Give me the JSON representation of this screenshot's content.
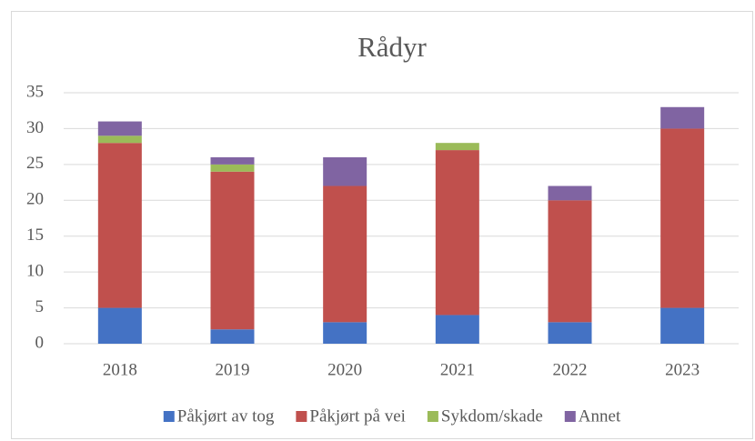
{
  "chart_data": {
    "type": "stacked_bar",
    "title": "Rådyr",
    "categories": [
      "2018",
      "2019",
      "2020",
      "2021",
      "2022",
      "2023"
    ],
    "series": [
      {
        "name": "Påkjørt av tog",
        "color": "#4472c4",
        "values": [
          5,
          2,
          3,
          4,
          3,
          5
        ]
      },
      {
        "name": "Påkjørt på vei",
        "color": "#c0504d",
        "values": [
          23,
          22,
          19,
          23,
          17,
          25
        ]
      },
      {
        "name": "Sykdom/skade",
        "color": "#9bbb59",
        "values": [
          1,
          1,
          0,
          1,
          0,
          0
        ]
      },
      {
        "name": "Annet",
        "color": "#8064a2",
        "values": [
          2,
          1,
          4,
          0,
          2,
          3
        ]
      }
    ],
    "ylim": [
      0,
      35
    ],
    "yticks": [
      0,
      5,
      10,
      15,
      20,
      25,
      30,
      35
    ],
    "grid": true,
    "legend": "bottom"
  }
}
